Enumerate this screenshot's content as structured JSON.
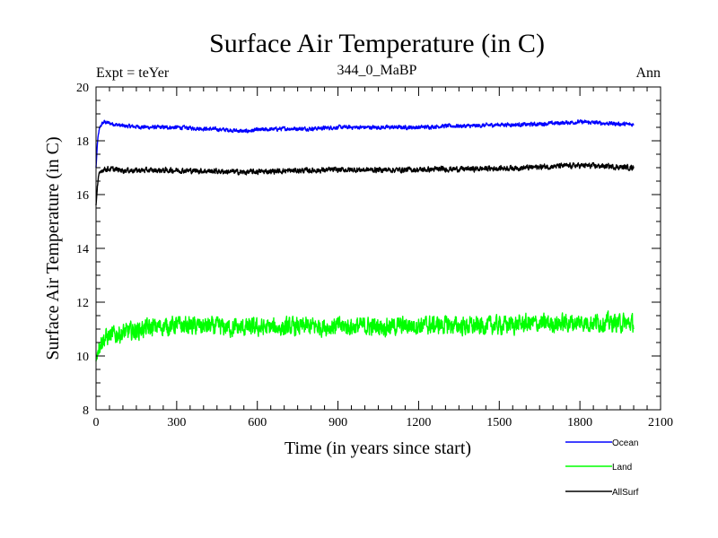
{
  "chart_data": {
    "type": "line",
    "title": "Surface Air Temperature (in C)",
    "subtitle": "344_0_MaBP",
    "left_label": "Expt = teYer",
    "right_label": "Ann",
    "xlabel": "Time (in years since start)",
    "ylabel": "Surface Air Temperature (in C)",
    "xlim": [
      0,
      2100
    ],
    "ylim": [
      8,
      20
    ],
    "x_ticks": [
      0,
      300,
      600,
      900,
      1200,
      1500,
      1800,
      2100
    ],
    "y_ticks": [
      8,
      10,
      12,
      14,
      16,
      18,
      20
    ],
    "x_tick_labels": [
      "0",
      "300",
      "600",
      "900",
      "1200",
      "1500",
      "1800",
      "2100"
    ],
    "y_tick_labels": [
      "8",
      "10",
      "12",
      "14",
      "16",
      "18",
      "20"
    ],
    "grid": false,
    "legend_position": "bottom-right, below plot",
    "series": [
      {
        "name": "Ocean",
        "color": "#0000ff",
        "x": [
          0,
          5,
          10,
          15,
          20,
          30,
          50,
          100,
          200,
          300,
          400,
          500,
          550,
          600,
          700,
          800,
          900,
          1000,
          1100,
          1200,
          1300,
          1400,
          1500,
          1600,
          1700,
          1800,
          1900,
          2000
        ],
        "values": [
          17.0,
          17.9,
          18.3,
          18.5,
          18.6,
          18.7,
          18.65,
          18.55,
          18.5,
          18.5,
          18.45,
          18.4,
          18.35,
          18.4,
          18.45,
          18.45,
          18.5,
          18.5,
          18.5,
          18.5,
          18.55,
          18.55,
          18.6,
          18.6,
          18.65,
          18.7,
          18.65,
          18.6
        ],
        "noise": 0.06
      },
      {
        "name": "Land",
        "color": "#00ff00",
        "x": [
          0,
          5,
          10,
          20,
          30,
          50,
          100,
          150,
          200,
          300,
          400,
          500,
          600,
          700,
          800,
          900,
          1000,
          1100,
          1200,
          1300,
          1400,
          1500,
          1600,
          1700,
          1800,
          1900,
          2000
        ],
        "values": [
          9.8,
          10.2,
          10.4,
          10.55,
          10.65,
          10.75,
          10.85,
          10.95,
          11.05,
          11.15,
          11.1,
          11.05,
          11.05,
          11.05,
          11.1,
          11.1,
          11.1,
          11.1,
          11.15,
          11.15,
          11.1,
          11.15,
          11.2,
          11.2,
          11.25,
          11.25,
          11.2
        ],
        "noise": 0.28
      },
      {
        "name": "AllSurf",
        "color": "#000000",
        "x": [
          0,
          5,
          10,
          15,
          20,
          30,
          50,
          100,
          200,
          300,
          400,
          500,
          550,
          600,
          700,
          800,
          900,
          1000,
          1100,
          1200,
          1300,
          1400,
          1500,
          1600,
          1700,
          1800,
          1900,
          2000
        ],
        "values": [
          15.6,
          16.3,
          16.65,
          16.8,
          16.9,
          16.95,
          16.95,
          16.9,
          16.9,
          16.9,
          16.88,
          16.85,
          16.83,
          16.85,
          16.88,
          16.9,
          16.92,
          16.92,
          16.92,
          16.92,
          16.95,
          16.95,
          16.98,
          17.0,
          17.05,
          17.08,
          17.05,
          17.0
        ],
        "noise": 0.08
      }
    ]
  }
}
